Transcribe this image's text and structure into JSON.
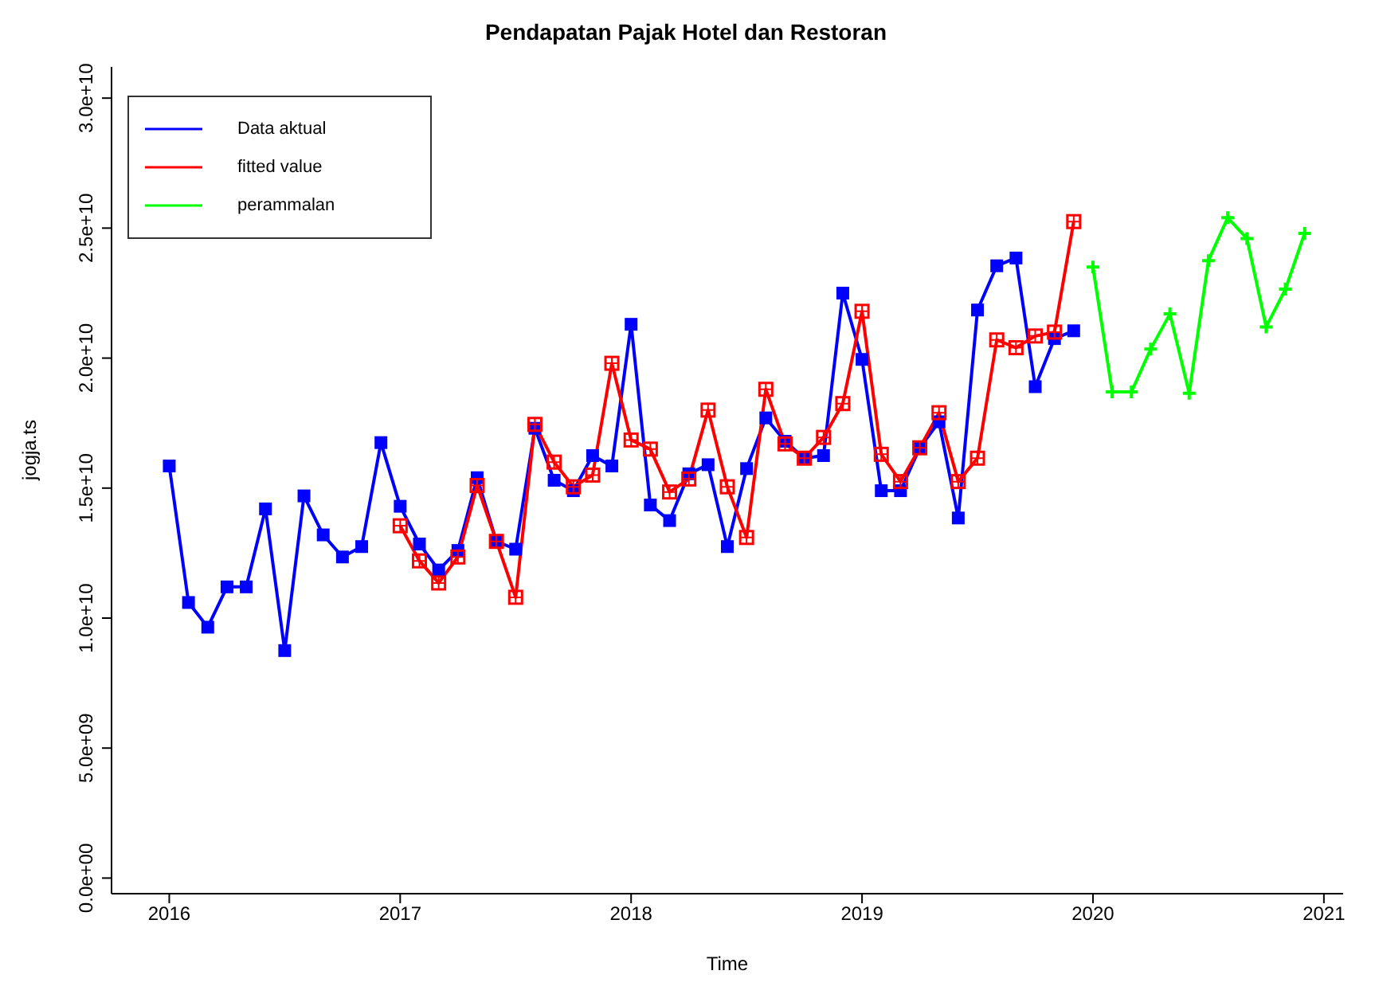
{
  "chart_data": {
    "type": "line",
    "title": "Pendapatan Pajak Hotel dan Restoran",
    "xlabel": "Time",
    "ylabel": "jogja.ts",
    "xlim": [
      "2015-10",
      "2021-02"
    ],
    "xticks": [
      "2016",
      "2017",
      "2018",
      "2019",
      "2020",
      "2021"
    ],
    "ylim": [
      -600000000.0,
      31200000000.0
    ],
    "yticks": [
      {
        "value": 0,
        "label": "0.0e+00"
      },
      {
        "value": 5000000000.0,
        "label": "5.0e+09"
      },
      {
        "value": 10000000000.0,
        "label": "1.0e+10"
      },
      {
        "value": 15000000000.0,
        "label": "1.5e+10"
      },
      {
        "value": 20000000000.0,
        "label": "2.0e+10"
      },
      {
        "value": 25000000000.0,
        "label": "2.5e+10"
      },
      {
        "value": 30000000000.0,
        "label": "3.0e+10"
      }
    ],
    "legend": "top left",
    "line_style": "solid",
    "series": [
      {
        "name": "Data aktual",
        "color": "#0000ff",
        "marker": "square",
        "x": [
          "2016-01",
          "2016-02",
          "2016-03",
          "2016-04",
          "2016-05",
          "2016-06",
          "2016-07",
          "2016-08",
          "2016-09",
          "2016-10",
          "2016-11",
          "2016-12",
          "2017-01",
          "2017-02",
          "2017-03",
          "2017-04",
          "2017-05",
          "2017-06",
          "2017-07",
          "2017-08",
          "2017-09",
          "2017-10",
          "2017-11",
          "2017-12",
          "2018-01",
          "2018-02",
          "2018-03",
          "2018-04",
          "2018-05",
          "2018-06",
          "2018-07",
          "2018-08",
          "2018-09",
          "2018-10",
          "2018-11",
          "2018-12",
          "2019-01",
          "2019-02",
          "2019-03",
          "2019-04",
          "2019-05",
          "2019-06",
          "2019-07",
          "2019-08",
          "2019-09",
          "2019-10",
          "2019-11",
          "2019-12"
        ],
        "values": [
          15850000000.0,
          10600000000.0,
          9650000000.0,
          11200000000.0,
          11200000000.0,
          14200000000.0,
          8750000000.0,
          14700000000.0,
          13200000000.0,
          12350000000.0,
          12750000000.0,
          16750000000.0,
          14300000000.0,
          12850000000.0,
          11850000000.0,
          12600000000.0,
          15400000000.0,
          12950000000.0,
          12650000000.0,
          17300000000.0,
          15300000000.0,
          14900000000.0,
          16250000000.0,
          15850000000.0,
          21300000000.0,
          14350000000.0,
          13750000000.0,
          15550000000.0,
          15900000000.0,
          12750000000.0,
          15750000000.0,
          17700000000.0,
          16800000000.0,
          16150000000.0,
          16250000000.0,
          22500000000.0,
          19950000000.0,
          14900000000.0,
          14900000000.0,
          16550000000.0,
          17550000000.0,
          13850000000.0,
          21850000000.0,
          23550000000.0,
          23850000000.0,
          18900000000.0,
          20750000000.0,
          21050000000.0
        ]
      },
      {
        "name": "fitted value",
        "color": "#ff0000",
        "marker": "square",
        "x": [
          "2017-01",
          "2017-02",
          "2017-03",
          "2017-04",
          "2017-05",
          "2017-06",
          "2017-07",
          "2017-08",
          "2017-09",
          "2017-10",
          "2017-11",
          "2017-12",
          "2018-01",
          "2018-02",
          "2018-03",
          "2018-04",
          "2018-05",
          "2018-06",
          "2018-07",
          "2018-08",
          "2018-09",
          "2018-10",
          "2018-11",
          "2018-12",
          "2019-01",
          "2019-02",
          "2019-03",
          "2019-04",
          "2019-05",
          "2019-06",
          "2019-07",
          "2019-08",
          "2019-09",
          "2019-10",
          "2019-11",
          "2019-12"
        ],
        "values": [
          13550000000.0,
          12200000000.0,
          11350000000.0,
          12350000000.0,
          15100000000.0,
          12950000000.0,
          10800000000.0,
          17450000000.0,
          16000000000.0,
          15050000000.0,
          15500000000.0,
          19800000000.0,
          16850000000.0,
          16500000000.0,
          14850000000.0,
          15350000000.0,
          18000000000.0,
          15050000000.0,
          13100000000.0,
          18800000000.0,
          16700000000.0,
          16150000000.0,
          16950000000.0,
          18250000000.0,
          21800000000.0,
          16300000000.0,
          15250000000.0,
          16550000000.0,
          17900000000.0,
          15250000000.0,
          16150000000.0,
          20700000000.0,
          20400000000.0,
          20850000000.0,
          21000000000.0,
          25250000000.0
        ]
      },
      {
        "name": "perammalan",
        "color": "#00ff00",
        "marker": "cross",
        "x": [
          "2020-01",
          "2020-02",
          "2020-03",
          "2020-04",
          "2020-05",
          "2020-06",
          "2020-07",
          "2020-08",
          "2020-09",
          "2020-10",
          "2020-11",
          "2020-12"
        ],
        "values": [
          23500000000.0,
          18700000000.0,
          18700000000.0,
          20350000000.0,
          21700000000.0,
          18650000000.0,
          23750000000.0,
          25400000000.0,
          24600000000.0,
          21200000000.0,
          22650000000.0,
          24800000000.0
        ]
      }
    ]
  }
}
